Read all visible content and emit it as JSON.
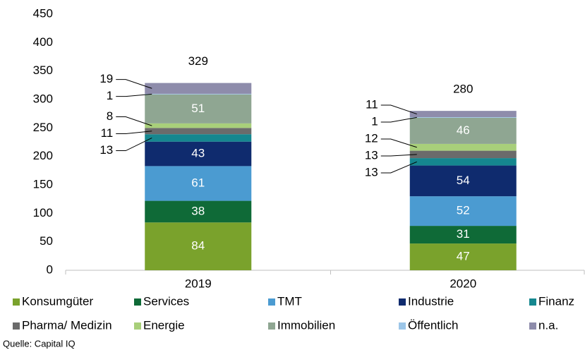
{
  "chart_data": {
    "type": "stacked_bar",
    "categories": [
      "2019",
      "2020"
    ],
    "series": [
      {
        "name": "Konsumgüter",
        "color": "#7aa22c",
        "values": [
          84,
          47
        ]
      },
      {
        "name": "Services",
        "color": "#0f6a37",
        "values": [
          38,
          31
        ]
      },
      {
        "name": "TMT",
        "color": "#4b9bd1",
        "values": [
          61,
          52
        ]
      },
      {
        "name": "Industrie",
        "color": "#0f2b6e",
        "values": [
          43,
          54
        ]
      },
      {
        "name": "Finanz",
        "color": "#15878f",
        "values": [
          13,
          13
        ]
      },
      {
        "name": "Pharma/ Medizin",
        "color": "#6b6b6b",
        "values": [
          11,
          13
        ]
      },
      {
        "name": "Energie",
        "color": "#a8cf7a",
        "values": [
          8,
          12
        ]
      },
      {
        "name": "Immobilien",
        "color": "#8fa692",
        "values": [
          51,
          46
        ]
      },
      {
        "name": "Öffentlich",
        "color": "#9cc6e8",
        "values": [
          1,
          1
        ]
      },
      {
        "name": "n.a.",
        "color": "#8e8cab",
        "values": [
          19,
          11
        ]
      }
    ],
    "totals": [
      329,
      280
    ],
    "ylim": [
      0,
      450
    ],
    "yticks": [
      0,
      50,
      100,
      150,
      200,
      250,
      300,
      350,
      400,
      450
    ],
    "legend": "bottom",
    "source": "Quelle: Capital IQ"
  }
}
